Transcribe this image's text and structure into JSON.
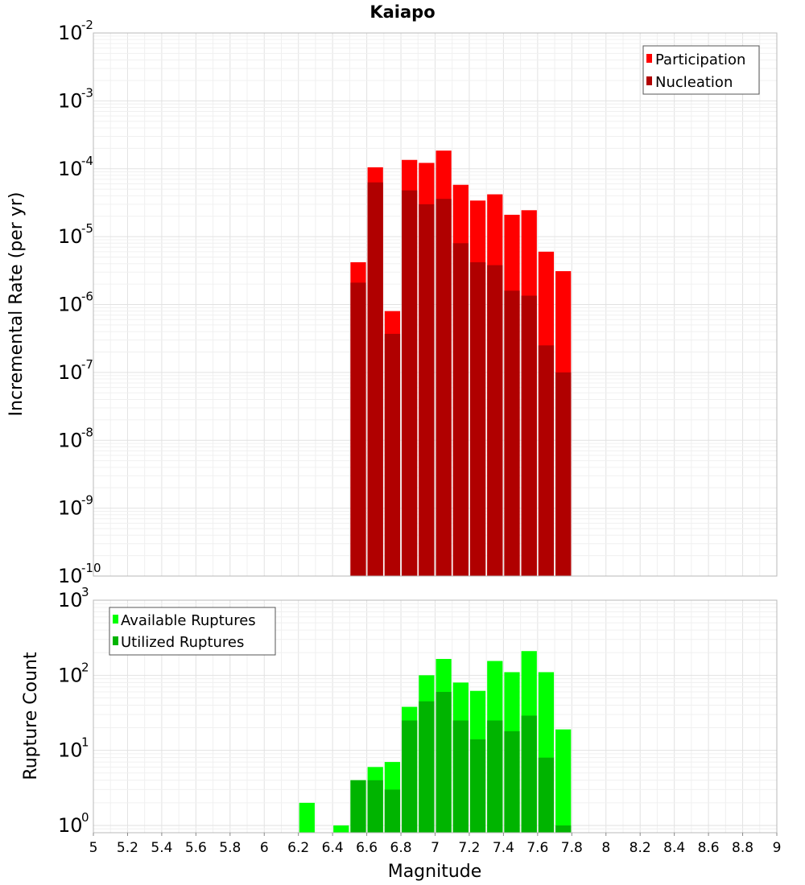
{
  "chart_data": [
    {
      "type": "bar",
      "title": "Kaiapo",
      "xlabel": "",
      "ylabel": "Incremental Rate (per yr)",
      "xlim": [
        5,
        9
      ],
      "ylim": [
        1e-10,
        0.01
      ],
      "yscale": "log",
      "grid": true,
      "legend_position": "top-right",
      "bin_width": 0.1,
      "x": [
        6.55,
        6.65,
        6.75,
        6.85,
        6.95,
        7.05,
        7.15,
        7.25,
        7.35,
        7.45,
        7.55,
        7.65,
        7.75
      ],
      "series": [
        {
          "name": "Participation",
          "color": "#ff0000",
          "values": [
            4.2e-06,
            0.000105,
            8e-07,
            0.000135,
            0.000122,
            0.000185,
            5.8e-05,
            3.4e-05,
            4.2e-05,
            2.1e-05,
            2.45e-05,
            6e-06,
            3.1e-06
          ]
        },
        {
          "name": "Nucleation",
          "color": "#b00000",
          "values": [
            2.1e-06,
            6.3e-05,
            3.7e-07,
            4.8e-05,
            3e-05,
            3.6e-05,
            8e-06,
            4.2e-06,
            3.8e-06,
            1.6e-06,
            1.35e-06,
            2.5e-07,
            1e-07
          ]
        }
      ]
    },
    {
      "type": "bar",
      "title": "",
      "xlabel": "Magnitude",
      "ylabel": "Rupture Count",
      "xlim": [
        5,
        9
      ],
      "ylim": [
        0.8,
        1000
      ],
      "yscale": "log",
      "grid": true,
      "legend_position": "top-left",
      "bin_width": 0.1,
      "x": [
        6.25,
        6.45,
        6.55,
        6.65,
        6.75,
        6.85,
        6.95,
        7.05,
        7.15,
        7.25,
        7.35,
        7.45,
        7.55,
        7.65,
        7.75
      ],
      "series": [
        {
          "name": "Available Ruptures",
          "color": "#00ff00",
          "values": [
            2,
            1,
            4,
            6,
            7,
            38,
            100,
            165,
            80,
            62,
            155,
            110,
            210,
            110,
            19
          ]
        },
        {
          "name": "Utilized Ruptures",
          "color": "#00b400",
          "values": [
            0,
            0,
            4,
            4,
            3,
            25,
            45,
            60,
            25,
            14,
            25,
            18,
            29,
            8,
            1
          ]
        }
      ]
    }
  ],
  "x_ticks": [
    "5",
    "5.2",
    "5.4",
    "5.6",
    "5.8",
    "6",
    "6.2",
    "6.4",
    "6.6",
    "6.8",
    "7",
    "7.2",
    "7.4",
    "7.6",
    "7.8",
    "8",
    "8.2",
    "8.4",
    "8.6",
    "8.8",
    "9"
  ],
  "top_y_ticks": [
    {
      "base": "10",
      "exp": "-10",
      "value": 1e-10
    },
    {
      "base": "10",
      "exp": "-9",
      "value": 1e-09
    },
    {
      "base": "10",
      "exp": "-8",
      "value": 1e-08
    },
    {
      "base": "10",
      "exp": "-7",
      "value": 1e-07
    },
    {
      "base": "10",
      "exp": "-6",
      "value": 1e-06
    },
    {
      "base": "10",
      "exp": "-5",
      "value": 1e-05
    },
    {
      "base": "10",
      "exp": "-4",
      "value": 0.0001
    },
    {
      "base": "10",
      "exp": "-3",
      "value": 0.001
    },
    {
      "base": "10",
      "exp": "-2",
      "value": 0.01
    }
  ],
  "bottom_y_ticks": [
    {
      "base": "10",
      "exp": "0",
      "value": 1
    },
    {
      "base": "10",
      "exp": "1",
      "value": 10
    },
    {
      "base": "10",
      "exp": "2",
      "value": 100
    },
    {
      "base": "10",
      "exp": "3",
      "value": 1000
    }
  ]
}
